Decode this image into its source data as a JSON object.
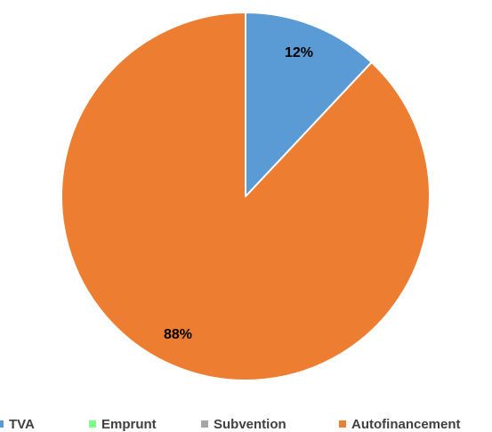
{
  "chart_data": {
    "type": "pie",
    "categories": [
      "TVA",
      "Emprunt",
      "Subvention",
      "Autofinancement"
    ],
    "values": [
      12,
      0,
      0,
      88
    ],
    "value_labels": [
      "12%",
      "",
      "",
      "88%"
    ],
    "colors": [
      "#5b9bd5",
      "#7cfc8a",
      "#a5a5a5",
      "#ed7d31"
    ],
    "title": "",
    "legend_position": "bottom",
    "start_angle": "top, clockwise"
  }
}
